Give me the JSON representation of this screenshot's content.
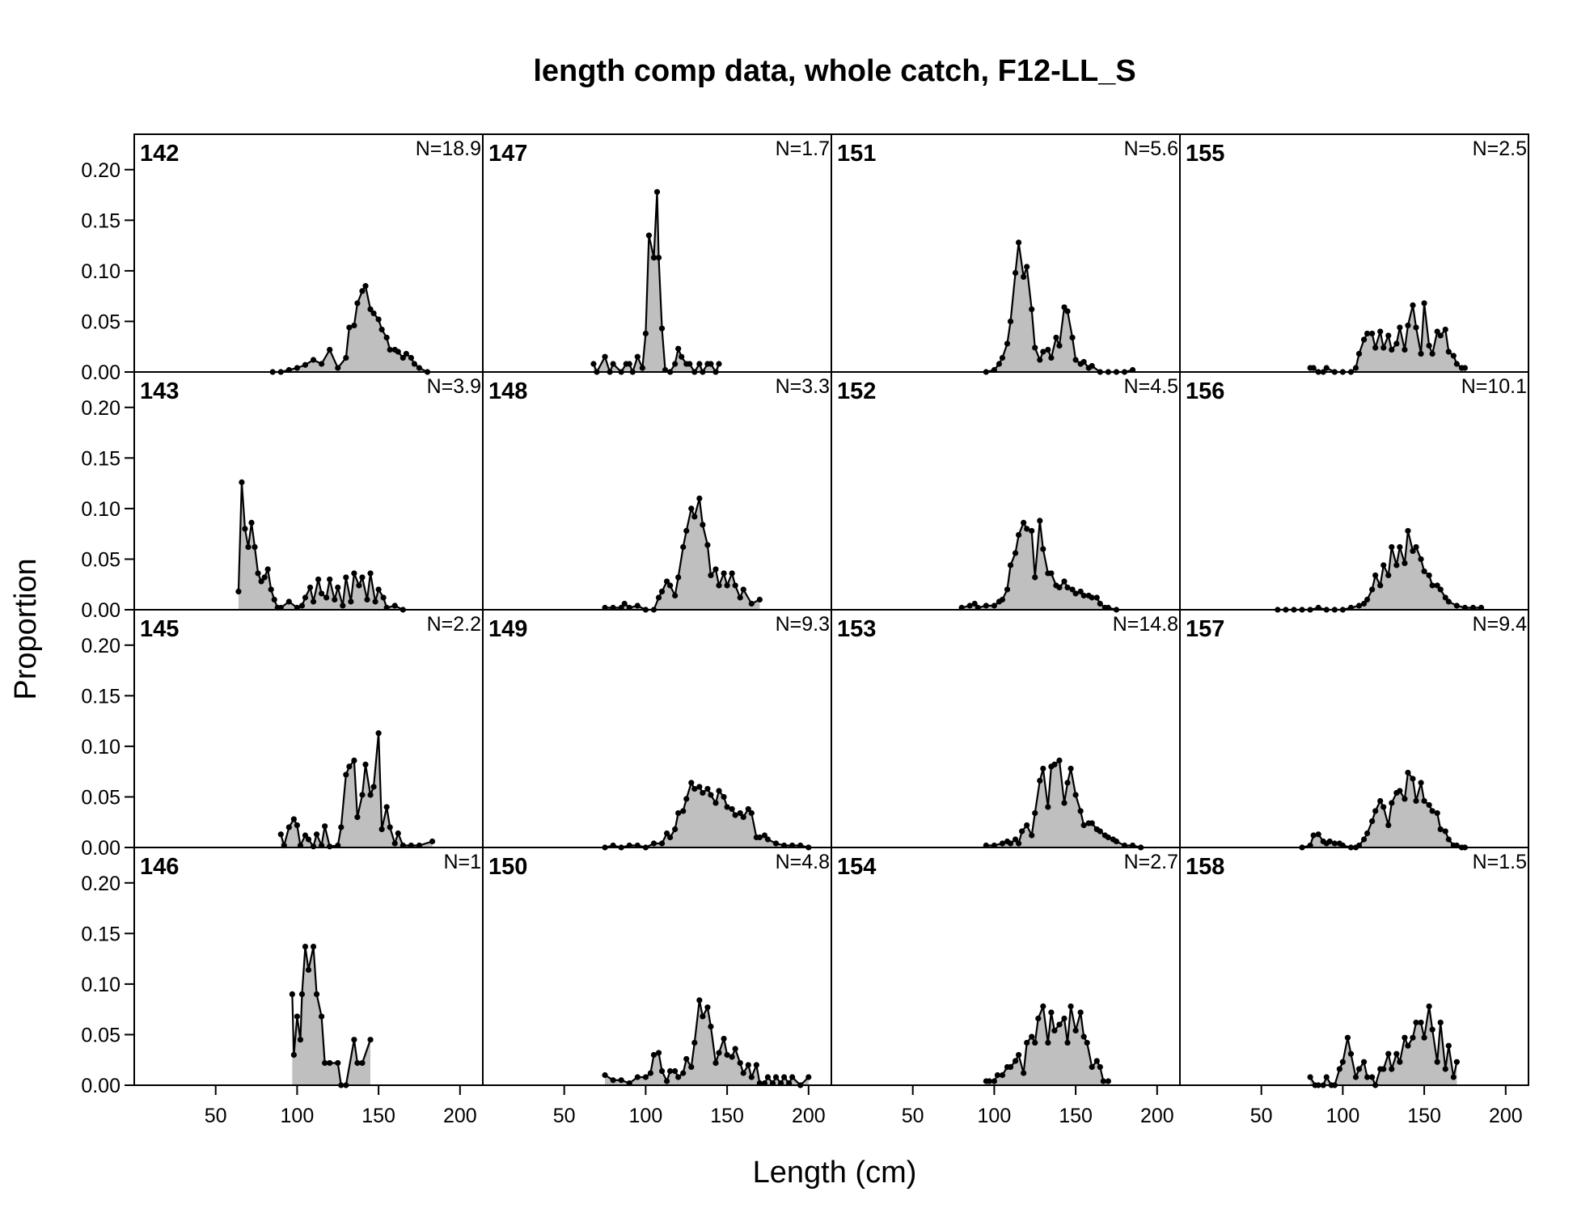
{
  "chart_data": {
    "type": "area",
    "title": "length comp data, whole catch, F12-LL_S",
    "xlabel": "Length (cm)",
    "ylabel": "Proportion",
    "xlim": [
      0,
      214
    ],
    "ylim": [
      0,
      0.235
    ],
    "xticks": [
      50,
      100,
      150,
      200
    ],
    "xtick_labels": [
      "50",
      "100",
      "150",
      "200"
    ],
    "yticks": [
      0,
      0.05,
      0.1,
      0.15,
      0.2
    ],
    "ytick_labels": [
      "0.00",
      "0.05",
      "0.10",
      "0.15",
      "0.20"
    ],
    "grid": false,
    "layout": "4 rows x 4 columns, panels read down columns",
    "colors": {
      "fill": "#bfbfbf",
      "line": "#000000",
      "axis": "#000000"
    },
    "panels": [
      {
        "id": "142",
        "n_label": "N=18.9",
        "x": [
          85,
          90,
          95,
          100,
          105,
          110,
          115,
          120,
          125,
          130,
          132,
          135,
          137,
          140,
          142,
          145,
          147,
          150,
          152,
          155,
          157,
          160,
          162,
          165,
          167,
          170,
          172,
          175,
          180
        ],
        "y": [
          0,
          0,
          0.002,
          0.004,
          0.007,
          0.012,
          0.008,
          0.022,
          0.004,
          0.014,
          0.044,
          0.046,
          0.068,
          0.08,
          0.085,
          0.062,
          0.058,
          0.052,
          0.042,
          0.034,
          0.022,
          0.022,
          0.02,
          0.014,
          0.018,
          0.014,
          0.008,
          0.004,
          0
        ]
      },
      {
        "id": "143",
        "n_label": "N=3.9",
        "x": [
          64,
          66,
          68,
          70,
          72,
          74,
          76,
          78,
          80,
          82,
          84,
          86,
          88,
          90,
          95,
          100,
          103,
          105,
          108,
          110,
          113,
          115,
          118,
          120,
          123,
          125,
          128,
          130,
          133,
          135,
          138,
          140,
          143,
          145,
          148,
          150,
          153,
          155,
          160,
          165
        ],
        "y": [
          0.018,
          0.126,
          0.08,
          0.062,
          0.086,
          0.062,
          0.036,
          0.028,
          0.032,
          0.04,
          0.02,
          0.01,
          0.002,
          0.002,
          0.008,
          0.002,
          0.004,
          0.012,
          0.022,
          0.008,
          0.03,
          0.016,
          0.012,
          0.03,
          0.01,
          0.022,
          0.004,
          0.032,
          0.008,
          0.036,
          0.024,
          0.032,
          0.01,
          0.036,
          0.008,
          0.02,
          0.012,
          0.002,
          0.004,
          0
        ]
      },
      {
        "id": "145",
        "n_label": "N=2.2",
        "x": [
          90,
          92,
          95,
          98,
          100,
          102,
          105,
          107,
          110,
          112,
          115,
          117,
          120,
          125,
          127,
          130,
          132,
          135,
          137,
          140,
          142,
          145,
          147,
          150,
          152,
          155,
          157,
          160,
          162,
          165,
          170,
          175,
          183
        ],
        "y": [
          0.013,
          0.002,
          0.02,
          0.028,
          0.022,
          0.002,
          0.012,
          0.008,
          0.001,
          0.013,
          0.002,
          0.021,
          0.001,
          0.002,
          0.02,
          0.072,
          0.08,
          0.086,
          0.03,
          0.052,
          0.082,
          0.052,
          0.06,
          0.113,
          0.018,
          0.04,
          0.02,
          0.004,
          0.014,
          0.002,
          0.002,
          0.002,
          0.006
        ]
      },
      {
        "id": "146",
        "n_label": "N=1",
        "x": [
          97,
          98,
          100,
          102,
          103,
          105,
          107,
          110,
          112,
          115,
          117,
          120,
          125,
          127,
          130,
          135,
          137,
          140,
          145
        ],
        "y": [
          0.09,
          0.03,
          0.068,
          0.045,
          0.09,
          0.137,
          0.114,
          0.137,
          0.09,
          0.068,
          0.022,
          0.022,
          0.022,
          0,
          0,
          0.045,
          0.022,
          0.022,
          0.045
        ]
      },
      {
        "id": "147",
        "n_label": "N=1.7",
        "x": [
          68,
          70,
          75,
          78,
          80,
          85,
          88,
          90,
          92,
          95,
          98,
          100,
          102,
          105,
          107,
          108,
          110,
          112,
          115,
          118,
          120,
          122,
          125,
          127,
          130,
          133,
          135,
          138,
          140,
          143,
          145
        ],
        "y": [
          0.008,
          0,
          0.015,
          0,
          0.008,
          0,
          0.008,
          0.008,
          0,
          0.015,
          0.004,
          0.038,
          0.135,
          0.113,
          0.178,
          0.113,
          0.043,
          0.002,
          0,
          0.008,
          0.023,
          0.015,
          0.008,
          0.008,
          0,
          0.008,
          0,
          0.008,
          0.008,
          0,
          0.008
        ]
      },
      {
        "id": "148",
        "n_label": "N=3.3",
        "x": [
          75,
          80,
          85,
          87,
          90,
          95,
          100,
          105,
          108,
          110,
          113,
          115,
          118,
          120,
          123,
          125,
          128,
          130,
          133,
          135,
          138,
          140,
          143,
          145,
          148,
          150,
          153,
          155,
          158,
          160,
          165,
          170
        ],
        "y": [
          0.002,
          0.002,
          0.002,
          0.006,
          0.002,
          0.004,
          0,
          0,
          0.012,
          0.018,
          0.028,
          0.024,
          0.014,
          0.032,
          0.062,
          0.078,
          0.1,
          0.092,
          0.11,
          0.084,
          0.064,
          0.034,
          0.04,
          0.024,
          0.036,
          0.024,
          0.036,
          0.024,
          0.012,
          0.02,
          0.006,
          0.01
        ]
      },
      {
        "id": "149",
        "n_label": "N=9.3",
        "x": [
          75,
          80,
          85,
          90,
          95,
          100,
          105,
          110,
          113,
          115,
          118,
          120,
          123,
          125,
          128,
          130,
          133,
          135,
          138,
          140,
          143,
          145,
          148,
          150,
          153,
          155,
          158,
          160,
          163,
          165,
          168,
          170,
          173,
          175,
          180,
          185,
          190,
          195,
          200
        ],
        "y": [
          0,
          0.002,
          0,
          0.002,
          0.002,
          0,
          0.004,
          0.004,
          0.014,
          0.01,
          0.018,
          0.034,
          0.036,
          0.048,
          0.064,
          0.058,
          0.06,
          0.054,
          0.058,
          0.052,
          0.044,
          0.056,
          0.05,
          0.04,
          0.038,
          0.032,
          0.034,
          0.03,
          0.038,
          0.034,
          0.01,
          0.01,
          0.012,
          0.008,
          0.004,
          0.002,
          0.002,
          0.002,
          0
        ]
      },
      {
        "id": "150",
        "n_label": "N=4.8",
        "x": [
          75,
          80,
          85,
          90,
          95,
          100,
          103,
          105,
          108,
          110,
          113,
          115,
          118,
          120,
          123,
          125,
          128,
          130,
          133,
          135,
          138,
          140,
          143,
          145,
          148,
          150,
          153,
          155,
          158,
          160,
          163,
          165,
          168,
          170,
          173,
          175,
          178,
          180,
          183,
          185,
          188,
          190,
          195,
          200
        ],
        "y": [
          0.01,
          0.005,
          0.005,
          0.002,
          0.008,
          0.008,
          0.012,
          0.03,
          0.032,
          0.014,
          0.004,
          0.014,
          0.014,
          0.008,
          0.012,
          0.026,
          0.018,
          0.042,
          0.084,
          0.068,
          0.077,
          0.058,
          0.022,
          0.032,
          0.046,
          0.03,
          0.028,
          0.036,
          0.022,
          0.012,
          0.02,
          0.008,
          0.02,
          0.002,
          0.002,
          0.008,
          0.002,
          0.008,
          0.002,
          0.008,
          0.002,
          0.008,
          0,
          0.008
        ]
      },
      {
        "id": "151",
        "n_label": "N=5.6",
        "x": [
          95,
          100,
          103,
          105,
          108,
          110,
          113,
          115,
          118,
          120,
          123,
          125,
          128,
          130,
          133,
          135,
          138,
          140,
          143,
          145,
          148,
          150,
          153,
          155,
          158,
          160,
          165,
          170,
          175,
          180,
          185
        ],
        "y": [
          0,
          0.002,
          0.008,
          0.014,
          0.028,
          0.05,
          0.098,
          0.128,
          0.094,
          0.104,
          0.062,
          0.024,
          0.012,
          0.02,
          0.022,
          0.014,
          0.034,
          0.026,
          0.064,
          0.06,
          0.034,
          0.012,
          0.008,
          0.01,
          0.004,
          0.006,
          0,
          0,
          0,
          0,
          0.002
        ]
      },
      {
        "id": "152",
        "n_label": "N=4.5",
        "x": [
          80,
          85,
          88,
          90,
          95,
          100,
          103,
          105,
          108,
          110,
          113,
          115,
          118,
          120,
          123,
          125,
          128,
          130,
          133,
          135,
          138,
          140,
          143,
          145,
          148,
          150,
          153,
          155,
          158,
          160,
          163,
          165,
          168,
          170,
          175
        ],
        "y": [
          0.002,
          0.004,
          0.006,
          0.002,
          0.004,
          0.004,
          0.008,
          0.01,
          0.02,
          0.044,
          0.056,
          0.074,
          0.086,
          0.08,
          0.078,
          0.032,
          0.088,
          0.06,
          0.036,
          0.036,
          0.024,
          0.022,
          0.028,
          0.022,
          0.02,
          0.016,
          0.018,
          0.014,
          0.014,
          0.012,
          0.012,
          0.006,
          0.002,
          0.002,
          0
        ]
      },
      {
        "id": "153",
        "n_label": "N=14.8",
        "x": [
          95,
          100,
          105,
          108,
          110,
          113,
          115,
          117,
          120,
          123,
          125,
          128,
          130,
          133,
          135,
          137,
          140,
          143,
          145,
          147,
          150,
          153,
          155,
          158,
          160,
          163,
          165,
          168,
          170,
          173,
          175,
          180,
          185,
          190
        ],
        "y": [
          0.002,
          0.002,
          0.004,
          0.006,
          0.004,
          0.008,
          0.004,
          0.016,
          0.022,
          0.012,
          0.034,
          0.066,
          0.078,
          0.04,
          0.08,
          0.082,
          0.086,
          0.044,
          0.064,
          0.078,
          0.052,
          0.036,
          0.022,
          0.024,
          0.024,
          0.018,
          0.016,
          0.012,
          0.01,
          0.008,
          0.006,
          0.002,
          0.002,
          0
        ]
      },
      {
        "id": "154",
        "n_label": "N=2.7",
        "x": [
          95,
          97,
          100,
          102,
          105,
          108,
          110,
          113,
          115,
          118,
          120,
          123,
          125,
          127,
          130,
          133,
          135,
          137,
          140,
          143,
          145,
          147,
          150,
          153,
          155,
          157,
          160,
          163,
          165,
          167,
          170
        ],
        "y": [
          0.004,
          0.004,
          0.004,
          0.01,
          0.01,
          0.018,
          0.018,
          0.024,
          0.03,
          0.012,
          0.042,
          0.048,
          0.042,
          0.066,
          0.078,
          0.042,
          0.072,
          0.054,
          0.06,
          0.066,
          0.042,
          0.078,
          0.054,
          0.072,
          0.048,
          0.042,
          0.018,
          0.024,
          0.018,
          0.004,
          0.004
        ]
      },
      {
        "id": "155",
        "n_label": "N=2.5",
        "x": [
          80,
          82,
          85,
          88,
          90,
          95,
          100,
          105,
          108,
          110,
          113,
          115,
          118,
          120,
          123,
          125,
          128,
          130,
          133,
          135,
          138,
          140,
          143,
          145,
          148,
          150,
          153,
          155,
          158,
          160,
          163,
          165,
          168,
          170,
          173,
          175
        ],
        "y": [
          0.004,
          0.004,
          0,
          0,
          0.004,
          0,
          0,
          0,
          0.004,
          0.018,
          0.032,
          0.038,
          0.038,
          0.024,
          0.04,
          0.024,
          0.036,
          0.022,
          0.028,
          0.044,
          0.022,
          0.046,
          0.066,
          0.044,
          0.018,
          0.068,
          0.026,
          0.018,
          0.04,
          0.036,
          0.042,
          0.02,
          0.016,
          0.008,
          0.004,
          0.004
        ]
      },
      {
        "id": "156",
        "n_label": "N=10.1",
        "x": [
          60,
          65,
          70,
          75,
          80,
          85,
          90,
          95,
          100,
          105,
          110,
          113,
          115,
          118,
          120,
          123,
          125,
          128,
          130,
          133,
          135,
          138,
          140,
          143,
          145,
          148,
          150,
          153,
          155,
          158,
          160,
          163,
          165,
          170,
          175,
          180,
          185
        ],
        "y": [
          0,
          0,
          0,
          0,
          0,
          0.002,
          0,
          0,
          0,
          0.002,
          0.004,
          0.006,
          0.01,
          0.02,
          0.034,
          0.024,
          0.044,
          0.034,
          0.062,
          0.044,
          0.062,
          0.046,
          0.078,
          0.058,
          0.062,
          0.05,
          0.038,
          0.034,
          0.024,
          0.024,
          0.02,
          0.012,
          0.008,
          0.004,
          0.002,
          0.002,
          0.002
        ]
      },
      {
        "id": "157",
        "n_label": "N=9.4",
        "x": [
          75,
          80,
          82,
          85,
          88,
          90,
          92,
          95,
          98,
          100,
          105,
          108,
          110,
          113,
          115,
          118,
          120,
          123,
          125,
          128,
          130,
          133,
          135,
          138,
          140,
          143,
          145,
          148,
          150,
          153,
          155,
          158,
          160,
          163,
          165,
          168,
          170,
          173,
          175
        ],
        "y": [
          0,
          0.002,
          0.012,
          0.013,
          0.006,
          0.004,
          0.006,
          0.004,
          0.004,
          0.002,
          0,
          0,
          0.002,
          0.008,
          0.014,
          0.026,
          0.036,
          0.046,
          0.04,
          0.022,
          0.044,
          0.054,
          0.056,
          0.048,
          0.074,
          0.068,
          0.046,
          0.064,
          0.046,
          0.042,
          0.036,
          0.034,
          0.018,
          0.016,
          0.008,
          0.002,
          0.002,
          0,
          0
        ]
      },
      {
        "id": "158",
        "n_label": "N=1.5",
        "x": [
          80,
          83,
          85,
          88,
          90,
          93,
          95,
          98,
          100,
          103,
          105,
          108,
          110,
          113,
          115,
          118,
          120,
          123,
          125,
          128,
          130,
          133,
          135,
          138,
          140,
          143,
          145,
          148,
          150,
          153,
          155,
          158,
          160,
          163,
          165,
          168,
          170
        ],
        "y": [
          0.008,
          0,
          0,
          0,
          0.008,
          0,
          0,
          0.016,
          0.023,
          0.047,
          0.031,
          0.008,
          0.016,
          0.023,
          0.008,
          0.008,
          0,
          0.016,
          0.016,
          0.031,
          0.016,
          0.031,
          0.023,
          0.047,
          0.039,
          0.047,
          0.062,
          0.062,
          0.047,
          0.078,
          0.055,
          0.023,
          0.062,
          0.016,
          0.039,
          0.008,
          0.023
        ]
      }
    ]
  }
}
